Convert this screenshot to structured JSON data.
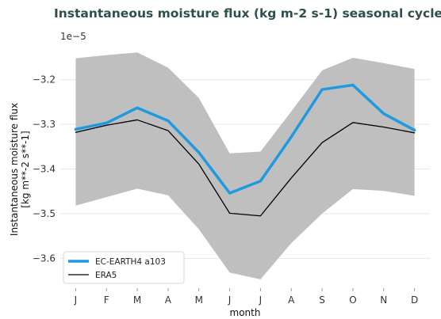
{
  "chart_data": {
    "type": "line",
    "title": "Instantaneous moisture flux (kg m-2 s-1) seasonal cycle",
    "xlabel": "month",
    "ylabel_lines": [
      "Instantaneous moisture flux",
      "[kg m**-2 s**-1]"
    ],
    "offset_text": "1e−5",
    "categories": [
      "J",
      "F",
      "M",
      "A",
      "M",
      "J",
      "J",
      "A",
      "S",
      "O",
      "N",
      "D"
    ],
    "ylim": [
      -3.665,
      -3.135
    ],
    "yticks": [
      -3.2,
      -3.3,
      -3.4,
      -3.5,
      -3.6
    ],
    "ytick_labels": [
      "−3.2",
      "−3.3",
      "−3.4",
      "−3.5",
      "−3.6"
    ],
    "grid": "horizontal",
    "legend_placement": "lower-left",
    "band": {
      "upper": [
        -3.152,
        -3.145,
        -3.139,
        -3.173,
        -3.241,
        -3.365,
        -3.361,
        -3.271,
        -3.179,
        -3.151,
        -3.163,
        -3.176
      ],
      "lower": [
        -3.482,
        -3.463,
        -3.444,
        -3.459,
        -3.535,
        -3.632,
        -3.647,
        -3.566,
        -3.5,
        -3.445,
        -3.449,
        -3.46
      ],
      "color": "#bfbfbf"
    },
    "series": [
      {
        "name": "EC-EARTH4 a103",
        "color": "#1f9ae0",
        "values": [
          -3.311,
          -3.297,
          -3.263,
          -3.292,
          -3.363,
          -3.454,
          -3.427,
          -3.328,
          -3.222,
          -3.212,
          -3.276,
          -3.313
        ]
      },
      {
        "name": "ERA5",
        "color": "#000000",
        "values": [
          -3.318,
          -3.302,
          -3.29,
          -3.314,
          -3.389,
          -3.499,
          -3.505,
          -3.42,
          -3.341,
          -3.296,
          -3.306,
          -3.319
        ]
      }
    ]
  }
}
